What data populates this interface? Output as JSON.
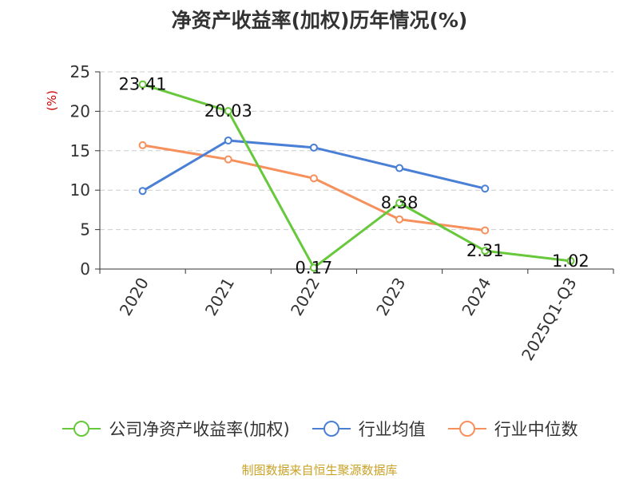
{
  "chart_data": {
    "type": "line",
    "title": "净资产收益率(加权)历年情况(%)",
    "ylabel": "(%)",
    "xlabel": "",
    "ylim": [
      0,
      25
    ],
    "yticks": [
      0,
      5,
      10,
      15,
      20,
      25
    ],
    "categories": [
      "2020",
      "2021",
      "2022",
      "2023",
      "2024",
      "2025Q1-Q3"
    ],
    "grid": true,
    "legend_position": "bottom",
    "series": [
      {
        "name": "公司净资产收益率(加权)",
        "color": "#66c83a",
        "values": [
          23.41,
          20.03,
          0.17,
          8.38,
          2.31,
          1.02
        ],
        "show_labels": true
      },
      {
        "name": "行业均值",
        "color": "#4a7fd6",
        "values": [
          9.9,
          16.3,
          15.4,
          12.8,
          10.2,
          null
        ],
        "show_labels": false
      },
      {
        "name": "行业中位数",
        "color": "#f6905c",
        "values": [
          15.7,
          13.9,
          11.5,
          6.3,
          4.9,
          null
        ],
        "show_labels": false
      }
    ]
  },
  "colors": {
    "ylabel": "#cc0000",
    "axis": "#333333",
    "grid": "#cccccc",
    "source": "#c9a227"
  },
  "source": "制图数据来自恒生聚源数据库"
}
